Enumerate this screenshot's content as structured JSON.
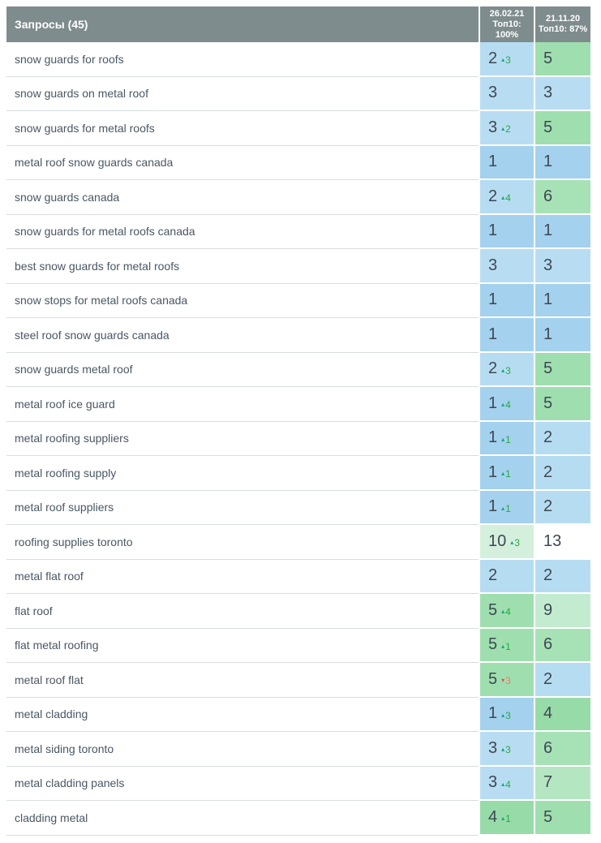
{
  "header": {
    "title": "Запросы (45)",
    "columns": [
      {
        "lines": [
          "26.02.21",
          "Топ10:",
          "100%"
        ]
      },
      {
        "lines": [
          "21.11.20",
          "Топ10: 87%"
        ]
      }
    ]
  },
  "colors": {
    "header_bg": "#7f8c8d",
    "header_text": "#ffffff",
    "query_text": "#4a5764",
    "position_text": "#3d4852",
    "row_border": "#d9dde0",
    "page_bg": "#ffffff",
    "up_arrow": "#12a383",
    "up_value": "#28a93d",
    "down_arrow": "#d9534f",
    "down_value": "#ee7b6f"
  },
  "icons": {
    "up": "▴",
    "down": "▾"
  },
  "position_colors": {
    "1": "#a4d1ee",
    "2": "#b6dcf2",
    "3": "#b8ddf3",
    "4": "#97dba9",
    "5": "#9fdfaf",
    "6": "#a7e2b6",
    "7": "#b4e6c2",
    "9": "#c3ebd0",
    "10": "#d4f0dd",
    "13": "#ffffff"
  },
  "rows": [
    {
      "query": "snow guards for roofs",
      "current": "2",
      "change": "3",
      "change_dir": "up",
      "previous": "5"
    },
    {
      "query": "snow guards on metal roof",
      "current": "3",
      "change": "",
      "change_dir": "",
      "previous": "3"
    },
    {
      "query": "snow guards for metal roofs",
      "current": "3",
      "change": "2",
      "change_dir": "up",
      "previous": "5"
    },
    {
      "query": "metal roof snow guards canada",
      "current": "1",
      "change": "",
      "change_dir": "",
      "previous": "1"
    },
    {
      "query": "snow guards canada",
      "current": "2",
      "change": "4",
      "change_dir": "up",
      "previous": "6"
    },
    {
      "query": "snow guards for metal roofs canada",
      "current": "1",
      "change": "",
      "change_dir": "",
      "previous": "1"
    },
    {
      "query": "best snow guards for metal roofs",
      "current": "3",
      "change": "",
      "change_dir": "",
      "previous": "3"
    },
    {
      "query": "snow stops for metal roofs canada",
      "current": "1",
      "change": "",
      "change_dir": "",
      "previous": "1"
    },
    {
      "query": "steel roof snow guards canada",
      "current": "1",
      "change": "",
      "change_dir": "",
      "previous": "1"
    },
    {
      "query": "snow guards metal roof",
      "current": "2",
      "change": "3",
      "change_dir": "up",
      "previous": "5"
    },
    {
      "query": "metal roof ice guard",
      "current": "1",
      "change": "4",
      "change_dir": "up",
      "previous": "5"
    },
    {
      "query": "metal roofing suppliers",
      "current": "1",
      "change": "1",
      "change_dir": "up",
      "previous": "2"
    },
    {
      "query": "metal roofing supply",
      "current": "1",
      "change": "1",
      "change_dir": "up",
      "previous": "2"
    },
    {
      "query": "metal roof suppliers",
      "current": "1",
      "change": "1",
      "change_dir": "up",
      "previous": "2"
    },
    {
      "query": "roofing supplies toronto",
      "current": "10",
      "change": "3",
      "change_dir": "up",
      "previous": "13"
    },
    {
      "query": "metal flat roof",
      "current": "2",
      "change": "",
      "change_dir": "",
      "previous": "2"
    },
    {
      "query": "flat roof",
      "current": "5",
      "change": "4",
      "change_dir": "up",
      "previous": "9"
    },
    {
      "query": "flat metal roofing",
      "current": "5",
      "change": "1",
      "change_dir": "up",
      "previous": "6"
    },
    {
      "query": "metal roof flat",
      "current": "5",
      "change": "3",
      "change_dir": "down",
      "previous": "2"
    },
    {
      "query": "metal cladding",
      "current": "1",
      "change": "3",
      "change_dir": "up",
      "previous": "4"
    },
    {
      "query": "metal siding toronto",
      "current": "3",
      "change": "3",
      "change_dir": "up",
      "previous": "6"
    },
    {
      "query": "metal cladding panels",
      "current": "3",
      "change": "4",
      "change_dir": "up",
      "previous": "7"
    },
    {
      "query": "cladding metal",
      "current": "4",
      "change": "1",
      "change_dir": "up",
      "previous": "5"
    }
  ]
}
